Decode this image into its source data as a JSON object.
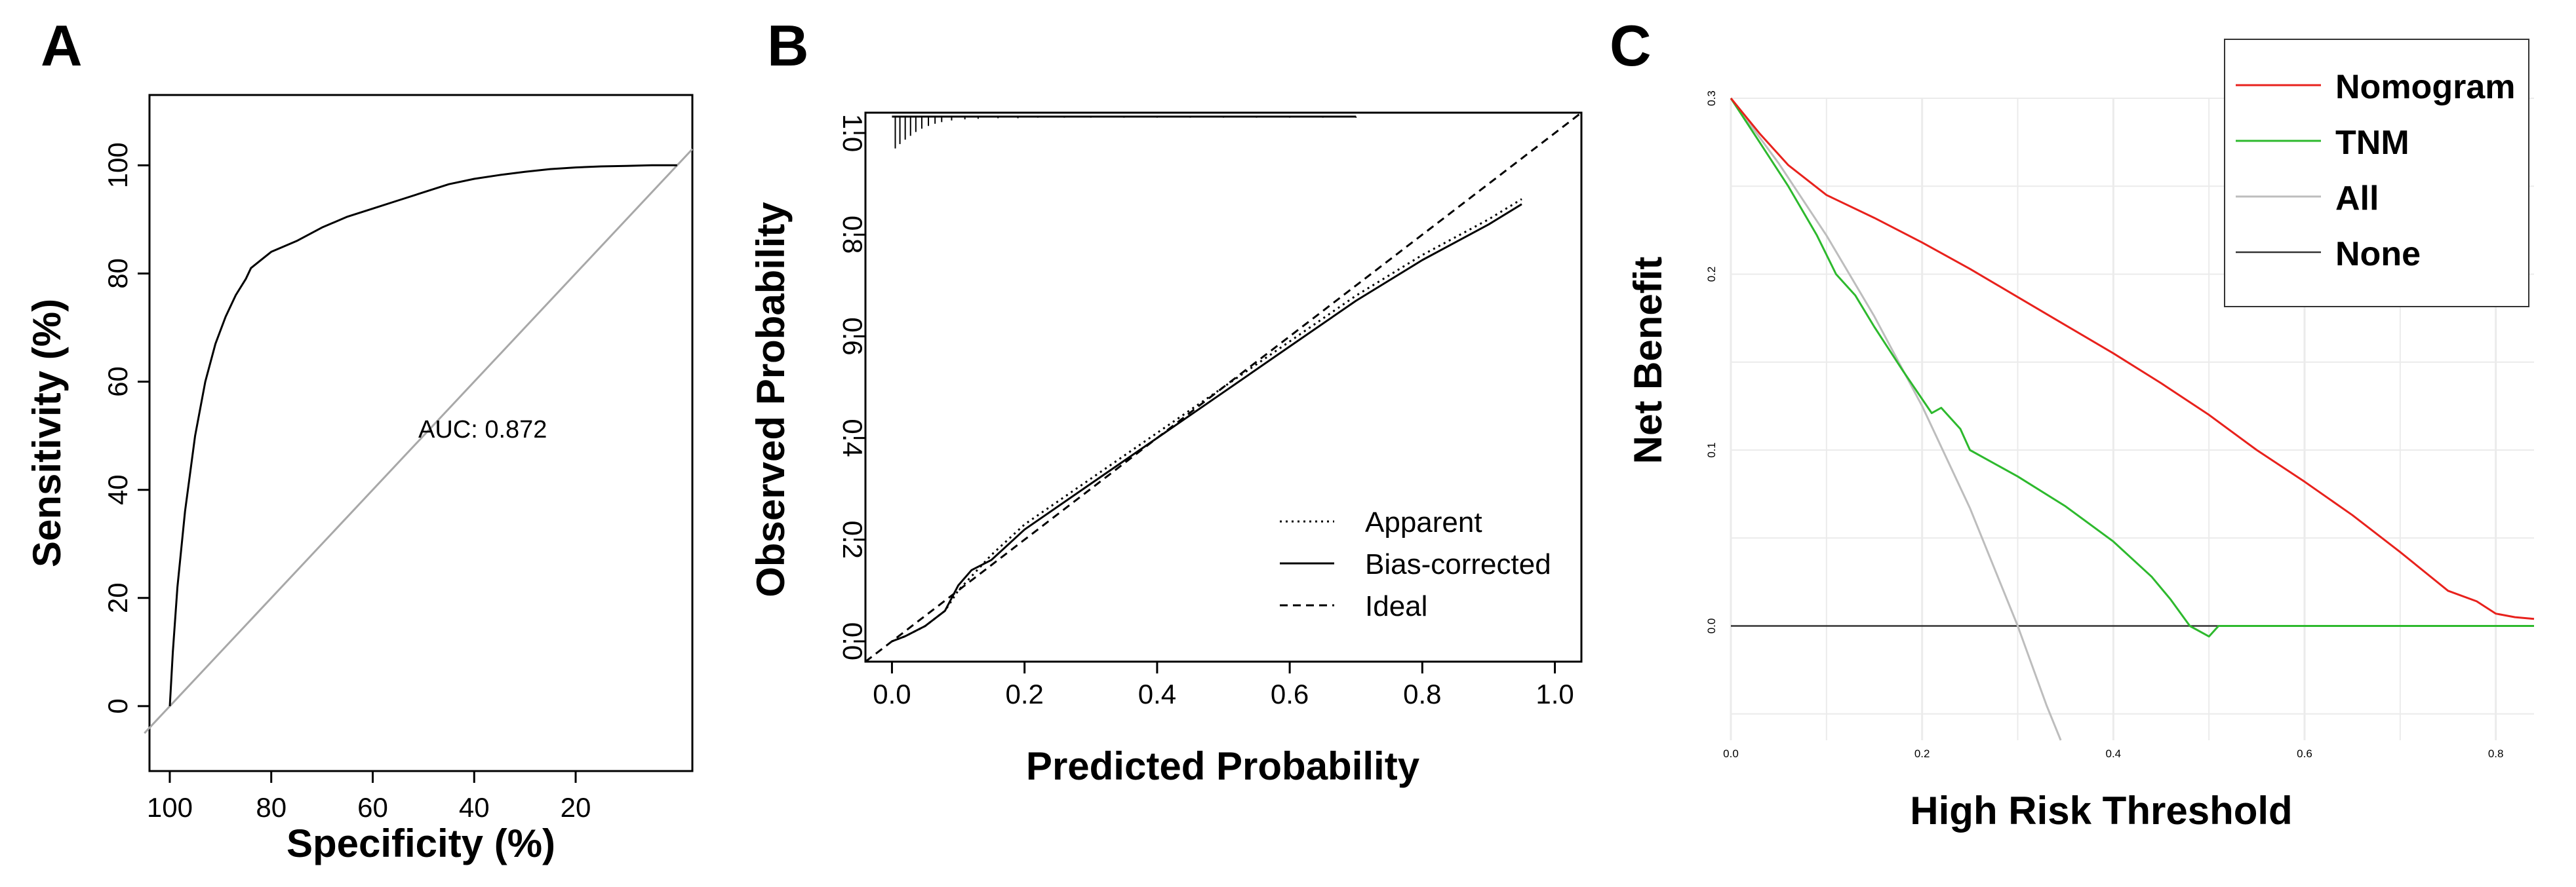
{
  "panels": {
    "a": {
      "letter": "A"
    },
    "b": {
      "letter": "B"
    },
    "c": {
      "letter": "C"
    }
  },
  "colors": {
    "nomogram": "#e8211c",
    "tnm": "#2db92d",
    "all": "#bdbdbd",
    "none": "#333333",
    "grid": "#ebebeb"
  },
  "chart_data": [
    {
      "id": "A",
      "type": "line",
      "title": "",
      "xlabel": "Specificity (%)",
      "ylabel": "Sensitivity (%)",
      "xlim": [
        104,
        -3
      ],
      "ylim": [
        -12,
        113
      ],
      "xticks": [
        100,
        80,
        60,
        40,
        20
      ],
      "xtick_labels": [
        "100",
        "80",
        "60",
        "40",
        "20"
      ],
      "yticks": [
        0,
        20,
        40,
        60,
        80,
        100
      ],
      "ytick_labels": [
        "0",
        "20",
        "40",
        "60",
        "80",
        "100"
      ],
      "annotation": "AUC: 0.872",
      "series": [
        {
          "name": "ROC",
          "x": [
            100,
            99.4,
            98.5,
            97,
            95,
            93,
            91,
            89,
            87,
            85,
            84,
            82,
            80,
            75,
            70,
            65,
            60,
            55,
            50,
            45,
            40,
            35,
            30,
            25,
            20,
            15,
            10,
            5,
            0
          ],
          "y": [
            0,
            10,
            22,
            36,
            50,
            60,
            67,
            72,
            76,
            79,
            81,
            82.5,
            84,
            86,
            88.5,
            90.5,
            92,
            93.5,
            95,
            96.5,
            97.5,
            98.2,
            98.8,
            99.3,
            99.6,
            99.8,
            99.9,
            100,
            100
          ]
        },
        {
          "name": "Reference",
          "x": [
            105,
            -3
          ],
          "y": [
            -5,
            103
          ]
        }
      ]
    },
    {
      "id": "B",
      "type": "line",
      "title": "",
      "xlabel": "Predicted Probability",
      "ylabel": "Observed Probability",
      "xlim": [
        -0.04,
        1.04
      ],
      "ylim": [
        -0.04,
        1.04
      ],
      "xticks": [
        0,
        0.2,
        0.4,
        0.6,
        0.8,
        1.0
      ],
      "xtick_labels": [
        "0.0",
        "0.2",
        "0.4",
        "0.6",
        "0.8",
        "1.0"
      ],
      "yticks": [
        0,
        0.2,
        0.4,
        0.6,
        0.8,
        1.0
      ],
      "ytick_labels": [
        "0.0",
        "0.2",
        "0.4",
        "0.6",
        "0.8",
        "1.0"
      ],
      "legend": [
        "Apparent",
        "Bias-corrected",
        "Ideal"
      ],
      "legend_position": "bottom-right",
      "series": [
        {
          "name": "Apparent",
          "style": "dotted",
          "x": [
            0.0,
            0.02,
            0.05,
            0.08,
            0.1,
            0.15,
            0.2,
            0.3,
            0.4,
            0.5,
            0.6,
            0.7,
            0.8,
            0.9,
            0.95
          ],
          "y": [
            0.0,
            0.01,
            0.03,
            0.06,
            0.1,
            0.17,
            0.23,
            0.32,
            0.41,
            0.5,
            0.59,
            0.68,
            0.76,
            0.83,
            0.87
          ]
        },
        {
          "name": "Bias-corrected",
          "style": "solid",
          "x": [
            0.0,
            0.02,
            0.05,
            0.08,
            0.1,
            0.12,
            0.15,
            0.2,
            0.3,
            0.4,
            0.5,
            0.6,
            0.7,
            0.8,
            0.9,
            0.95
          ],
          "y": [
            0.0,
            0.01,
            0.03,
            0.06,
            0.11,
            0.14,
            0.16,
            0.22,
            0.31,
            0.4,
            0.49,
            0.58,
            0.67,
            0.75,
            0.82,
            0.86
          ]
        },
        {
          "name": "Ideal",
          "style": "dashed",
          "x": [
            -0.04,
            1.04
          ],
          "y": [
            -0.04,
            1.04
          ]
        }
      ],
      "rug": {
        "position": "top",
        "x": [
          0.005,
          0.012,
          0.02,
          0.028,
          0.036,
          0.045,
          0.055,
          0.065,
          0.075,
          0.09,
          0.11,
          0.13,
          0.16,
          0.19,
          0.22,
          0.26,
          0.3,
          0.35,
          0.4,
          0.45,
          0.5,
          0.55,
          0.6,
          0.65,
          0.7
        ],
        "len": [
          0.058,
          0.05,
          0.042,
          0.035,
          0.028,
          0.022,
          0.017,
          0.013,
          0.01,
          0.007,
          0.005,
          0.004,
          0.003,
          0.003,
          0.002,
          0.002,
          0.002,
          0.002,
          0.002,
          0.002,
          0.002,
          0.002,
          0.002,
          0.002,
          0.002
        ]
      }
    },
    {
      "id": "C",
      "type": "line",
      "title": "",
      "xlabel": "High Risk Threshold",
      "ylabel": "Net Benefit",
      "xlim": [
        0,
        0.84
      ],
      "ylim": [
        -0.065,
        0.3
      ],
      "xticks": [
        0,
        0.2,
        0.4,
        0.6,
        0.8
      ],
      "xtick_labels": [
        "0.0",
        "0.2",
        "0.4",
        "0.6",
        "0.8"
      ],
      "yticks": [
        0,
        0.1,
        0.2,
        0.3
      ],
      "ytick_labels": [
        "0.0",
        "0.1",
        "0.2",
        "0.3"
      ],
      "grid": true,
      "legend": [
        "Nomogram",
        "TNM",
        "All",
        "None"
      ],
      "legend_position": "top-right",
      "series": [
        {
          "name": "Nomogram",
          "color": "#e8211c",
          "x": [
            0,
            0.03,
            0.06,
            0.1,
            0.15,
            0.2,
            0.25,
            0.3,
            0.35,
            0.4,
            0.45,
            0.5,
            0.55,
            0.6,
            0.65,
            0.7,
            0.75,
            0.78,
            0.8,
            0.82,
            0.84
          ],
          "y": [
            0.3,
            0.28,
            0.262,
            0.245,
            0.232,
            0.218,
            0.203,
            0.187,
            0.171,
            0.155,
            0.138,
            0.12,
            0.1,
            0.082,
            0.063,
            0.042,
            0.02,
            0.014,
            0.007,
            0.005,
            0.004
          ]
        },
        {
          "name": "TNM",
          "color": "#2db92d",
          "x": [
            0,
            0.03,
            0.06,
            0.09,
            0.11,
            0.13,
            0.15,
            0.18,
            0.21,
            0.22,
            0.24,
            0.25,
            0.3,
            0.35,
            0.4,
            0.44,
            0.46,
            0.48,
            0.5,
            0.51,
            0.55,
            0.6,
            0.7,
            0.84
          ],
          "y": [
            0.3,
            0.275,
            0.25,
            0.222,
            0.2,
            0.188,
            0.17,
            0.145,
            0.121,
            0.124,
            0.112,
            0.1,
            0.085,
            0.068,
            0.048,
            0.028,
            0.015,
            0.0,
            -0.006,
            0.0,
            0.0,
            0.0,
            0.0,
            0.0
          ]
        },
        {
          "name": "All",
          "color": "#bdbdbd",
          "x": [
            0,
            0.05,
            0.1,
            0.15,
            0.2,
            0.25,
            0.3,
            0.33,
            0.345
          ],
          "y": [
            0.3,
            0.263,
            0.222,
            0.176,
            0.125,
            0.067,
            0.0,
            -0.045,
            -0.065
          ]
        },
        {
          "name": "None",
          "color": "#333333",
          "x": [
            0,
            0.84
          ],
          "y": [
            0,
            0
          ]
        }
      ]
    }
  ]
}
